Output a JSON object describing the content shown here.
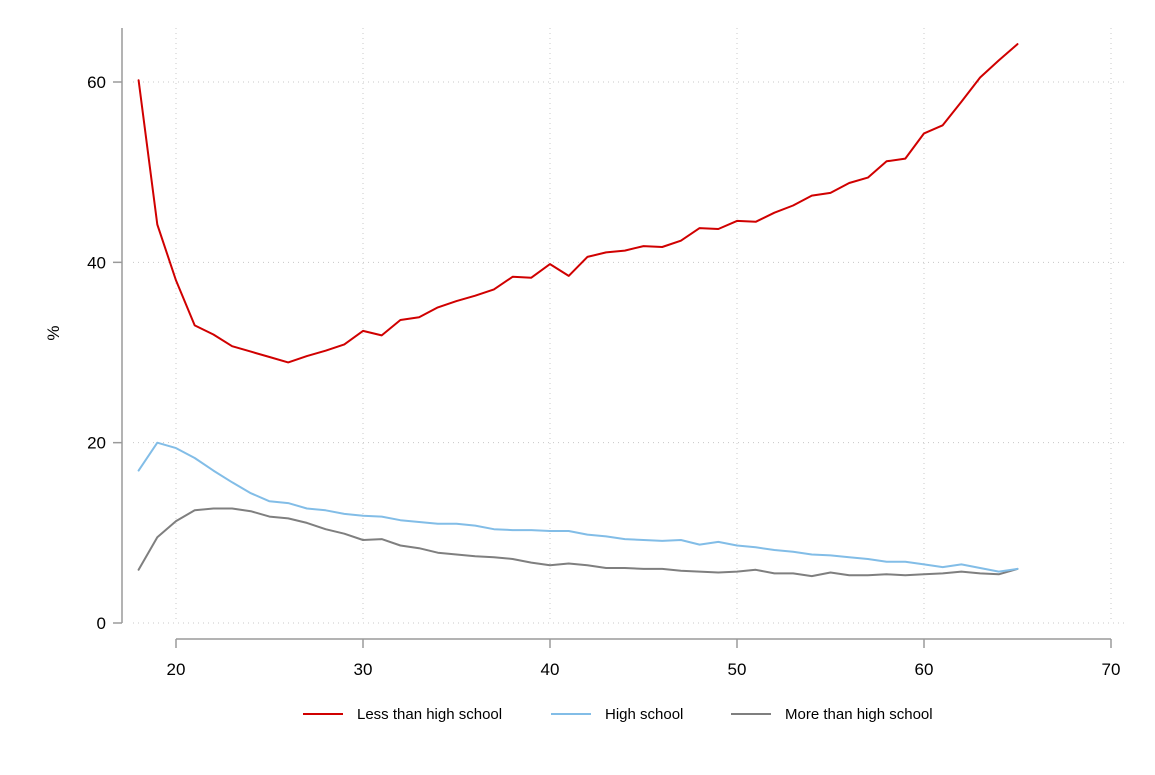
{
  "chart_data": {
    "type": "line",
    "title": "",
    "xlabel": "",
    "ylabel": "%",
    "xlim": [
      18,
      70
    ],
    "ylim": [
      0,
      65
    ],
    "x_ticks": [
      20,
      30,
      40,
      50,
      60,
      70
    ],
    "x_tick_labels": [
      "20",
      "30",
      "40",
      "50",
      "60",
      "70"
    ],
    "y_ticks": [
      0,
      20,
      40,
      60
    ],
    "y_tick_labels": [
      "0",
      "20",
      "40",
      "60"
    ],
    "grid": true,
    "legend_position": "bottom",
    "x": [
      18,
      19,
      20,
      21,
      22,
      23,
      24,
      25,
      26,
      27,
      28,
      29,
      30,
      31,
      32,
      33,
      34,
      35,
      36,
      37,
      38,
      39,
      40,
      41,
      42,
      43,
      44,
      45,
      46,
      47,
      48,
      49,
      50,
      51,
      52,
      53,
      54,
      55,
      56,
      57,
      58,
      59,
      60,
      61,
      62,
      63,
      64,
      65
    ],
    "series": [
      {
        "name": "Less than high school",
        "color": "#d00000",
        "values": [
          60.2,
          44.2,
          38.0,
          33.0,
          32.0,
          30.7,
          30.1,
          29.5,
          28.9,
          29.6,
          30.2,
          30.9,
          32.4,
          31.9,
          33.6,
          33.9,
          35.0,
          35.7,
          36.3,
          37.0,
          38.4,
          38.3,
          39.8,
          38.5,
          40.6,
          41.1,
          41.3,
          41.8,
          41.7,
          42.4,
          43.8,
          43.7,
          44.6,
          44.5,
          45.5,
          46.3,
          47.4,
          47.7,
          48.8,
          49.4,
          51.2,
          51.5,
          54.3,
          55.2,
          57.8,
          60.5,
          62.4,
          64.2
        ]
      },
      {
        "name": "High school",
        "color": "#82bde7",
        "values": [
          16.9,
          20.0,
          19.4,
          18.3,
          16.9,
          15.6,
          14.4,
          13.5,
          13.3,
          12.7,
          12.5,
          12.1,
          11.9,
          11.8,
          11.4,
          11.2,
          11.0,
          11.0,
          10.8,
          10.4,
          10.3,
          10.3,
          10.2,
          10.2,
          9.8,
          9.6,
          9.3,
          9.2,
          9.1,
          9.2,
          8.7,
          9.0,
          8.6,
          8.4,
          8.1,
          7.9,
          7.6,
          7.5,
          7.3,
          7.1,
          6.8,
          6.8,
          6.5,
          6.2,
          6.5,
          6.1,
          5.7,
          6.0
        ]
      },
      {
        "name": "More than high school",
        "color": "#7f7f7f",
        "values": [
          5.9,
          9.5,
          11.3,
          12.5,
          12.7,
          12.7,
          12.4,
          11.8,
          11.6,
          11.1,
          10.4,
          9.9,
          9.2,
          9.3,
          8.6,
          8.3,
          7.8,
          7.6,
          7.4,
          7.3,
          7.1,
          6.7,
          6.4,
          6.6,
          6.4,
          6.1,
          6.1,
          6.0,
          6.0,
          5.8,
          5.7,
          5.6,
          5.7,
          5.9,
          5.5,
          5.5,
          5.2,
          5.6,
          5.3,
          5.3,
          5.4,
          5.3,
          5.4,
          5.5,
          5.7,
          5.5,
          5.4,
          6.0
        ]
      }
    ]
  }
}
